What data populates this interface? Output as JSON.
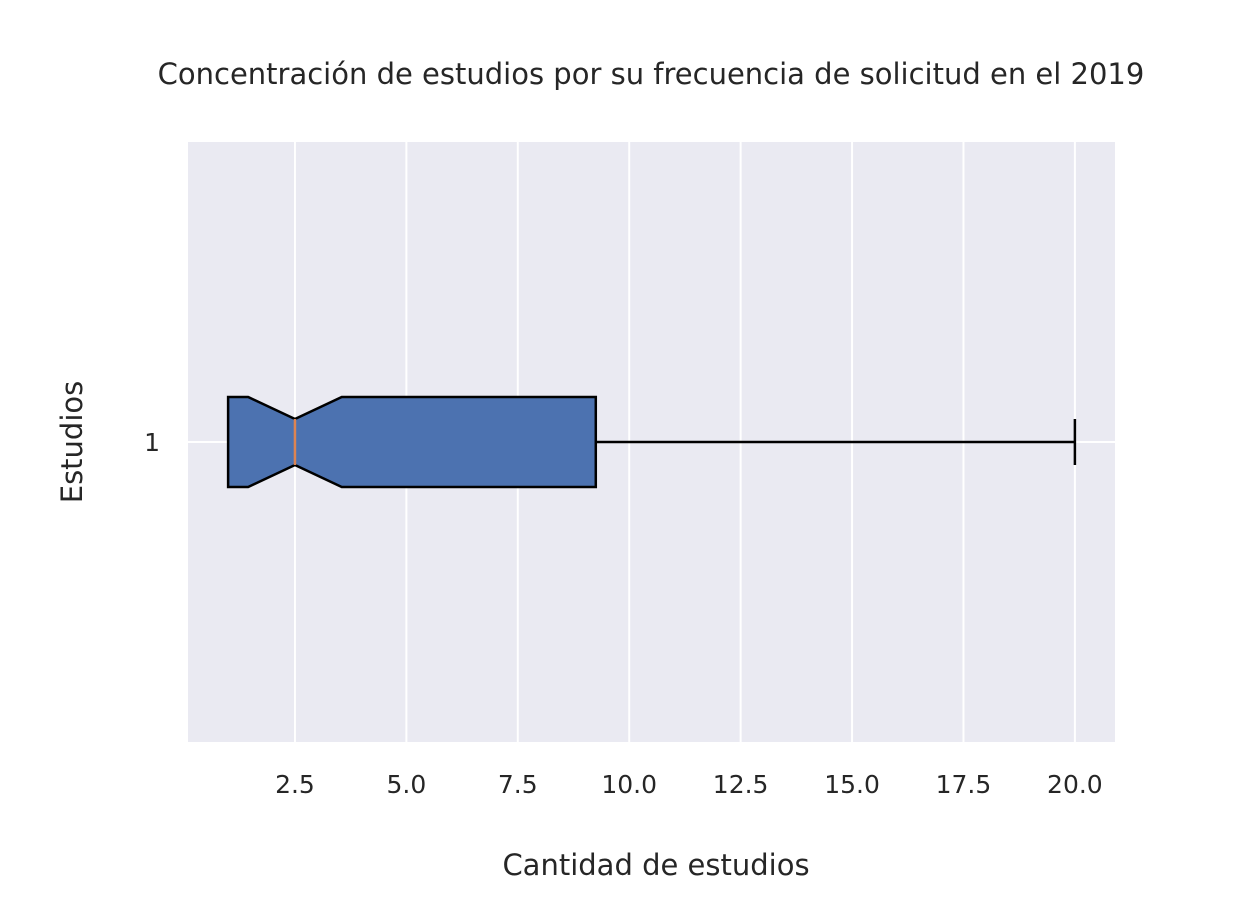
{
  "chart_data": {
    "type": "boxplot",
    "orientation": "horizontal",
    "title": "Concentración de estudios por su frecuencia de solicitud en el 2019",
    "xlabel": "Cantidad de estudios",
    "ylabel": "Estudios",
    "xlim": [
      0.1,
      20.9
    ],
    "x_ticks": [
      2.5,
      5.0,
      7.5,
      10.0,
      12.5,
      15.0,
      17.5,
      20.0
    ],
    "x_tick_labels": [
      "2.5",
      "5.0",
      "7.5",
      "10.0",
      "12.5",
      "15.0",
      "17.5",
      "20.0"
    ],
    "categories": [
      "1"
    ],
    "notched": true,
    "grid": true,
    "series": [
      {
        "label": "1",
        "whisker_low": 1.0,
        "q1": 1.0,
        "notch_low": 1.45,
        "median": 2.5,
        "notch_high": 3.55,
        "q3": 9.25,
        "whisker_high": 20.0
      }
    ],
    "colors": {
      "background": "#eaeaf2",
      "grid": "#ffffff",
      "box_fill": "#4c72b0",
      "box_edge": "#000000",
      "median": "#dd8452",
      "text": "#262626"
    }
  }
}
